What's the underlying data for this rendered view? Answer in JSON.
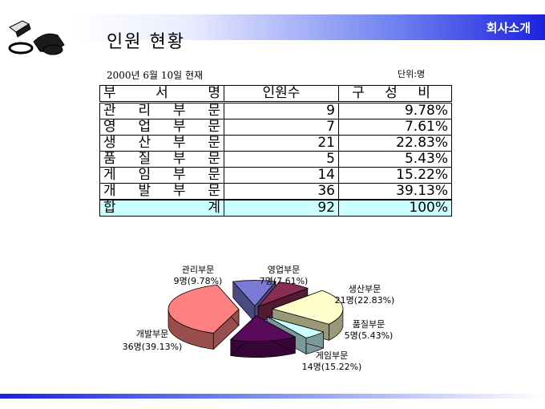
{
  "header": {
    "tag": "회사소개"
  },
  "title": "인원 현황",
  "date_note": "2000년 6월 10일 현재",
  "unit_note": "단위:명",
  "table": {
    "headers": [
      "부 서 명",
      "인원수",
      "구 성 비"
    ],
    "rows": [
      [
        "관 리 부 문",
        "9",
        "9.78%"
      ],
      [
        "영 업 부 문",
        "7",
        "7.61%"
      ],
      [
        "생 산 부 문",
        "21",
        "22.83%"
      ],
      [
        "품 질 부 문",
        "5",
        "5.43%"
      ],
      [
        "게 임 부 문",
        "14",
        "15.22%"
      ],
      [
        "개 발 부 문",
        "36",
        "39.13%"
      ]
    ],
    "total": [
      "합 계",
      "92",
      "100%"
    ]
  },
  "chart_data": {
    "type": "pie",
    "slices": [
      {
        "label": "관리부문",
        "value": 9,
        "text": "9명(9.78%)",
        "color": "#7b7bd6"
      },
      {
        "label": "영업부문",
        "value": 7,
        "text": "7명(7.61%)",
        "color": "#8a2d52"
      },
      {
        "label": "생산부문",
        "value": 21,
        "text": "21명(22.83%)",
        "color": "#ffffcc"
      },
      {
        "label": "품질부문",
        "value": 5,
        "text": "5명(5.43%)",
        "color": "#ccffff"
      },
      {
        "label": "게임부문",
        "value": 14,
        "text": "14명(15.22%)",
        "color": "#5a0a5a"
      },
      {
        "label": "개발부문",
        "value": 36,
        "text": "36명(39.13%)",
        "color": "#ff8080"
      }
    ]
  }
}
